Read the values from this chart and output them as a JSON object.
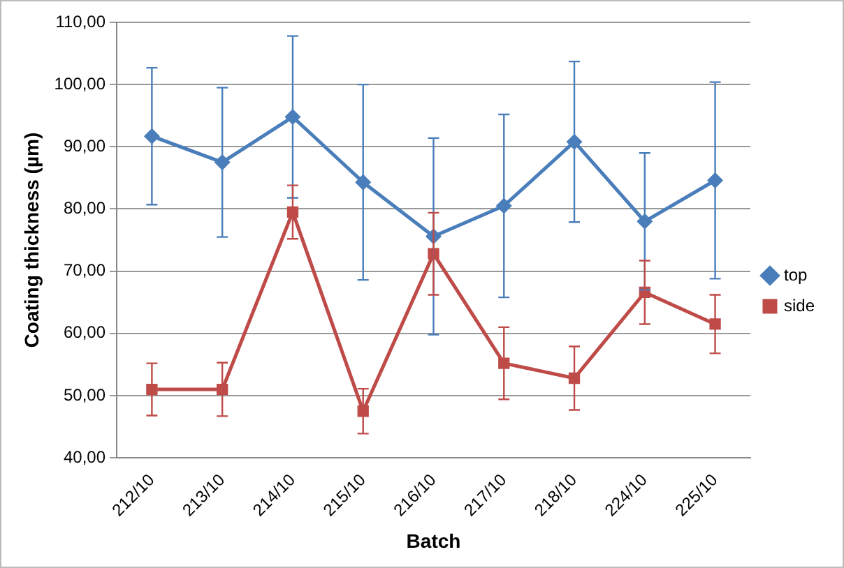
{
  "chart_data": {
    "type": "line",
    "xlabel": "Batch",
    "ylabel": "Coating thickness (µm)",
    "categories": [
      "212/10",
      "213/10",
      "214/10",
      "215/10",
      "216/10",
      "217/10",
      "218/10",
      "224/10",
      "225/10"
    ],
    "series": [
      {
        "name": "top",
        "color": "#4a7ebb",
        "marker": "diamond",
        "values": [
          91.7,
          87.5,
          94.8,
          84.3,
          75.6,
          80.5,
          90.8,
          78,
          84.6
        ],
        "errors": [
          11,
          12,
          13,
          15.7,
          15.8,
          14.7,
          12.9,
          11,
          15.8
        ]
      },
      {
        "name": "side",
        "color": "#be4b48",
        "marker": "square",
        "values": [
          51,
          51,
          79.5,
          47.5,
          72.8,
          55.2,
          52.8,
          66.6,
          61.5
        ],
        "errors": [
          4.2,
          4.3,
          4.3,
          3.6,
          6.6,
          5.8,
          5.1,
          5.1,
          4.7
        ]
      }
    ],
    "ylim": [
      40,
      110
    ],
    "yticks": [
      {
        "value": 40,
        "label": "40,00"
      },
      {
        "value": 50,
        "label": "50,00"
      },
      {
        "value": 60,
        "label": "60,00"
      },
      {
        "value": 70,
        "label": "70,00"
      },
      {
        "value": 80,
        "label": "80,00"
      },
      {
        "value": 90,
        "label": "90,00"
      },
      {
        "value": 100,
        "label": "100,00"
      },
      {
        "value": 110,
        "label": "110,00"
      }
    ],
    "grid": "y",
    "legend": "right",
    "line_style": "solid"
  }
}
